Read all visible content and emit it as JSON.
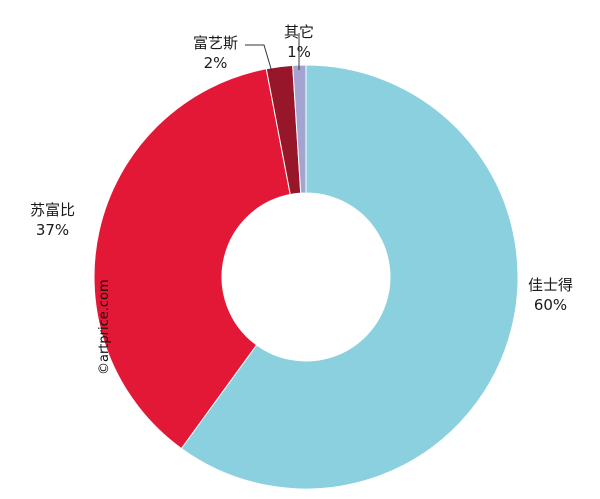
{
  "chart_data": {
    "type": "pie",
    "donut": true,
    "start_angle_deg": 0,
    "direction": "clockwise",
    "slices": [
      {
        "label": "佳士得",
        "value": 60,
        "value_label": "60%",
        "color": "#8ad0df"
      },
      {
        "label": "苏富比",
        "value": 37,
        "value_label": "37%",
        "color": "#e31836"
      },
      {
        "label": "富艺斯",
        "value": 2,
        "value_label": "2%",
        "color": "#97162a"
      },
      {
        "label": "其它",
        "value": 1,
        "value_label": "1%",
        "color": "#a5a3d2"
      }
    ]
  },
  "watermark": "©artprice.com"
}
